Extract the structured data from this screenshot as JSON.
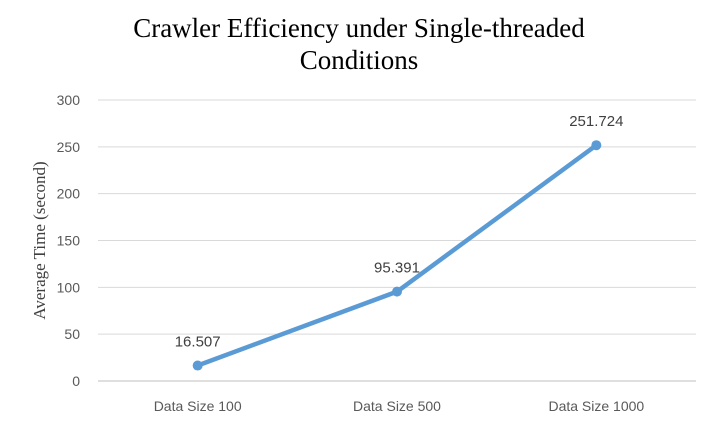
{
  "chart_data": {
    "type": "line",
    "title_lines": [
      "Crawler Efficiency under Single-threaded",
      "Conditions"
    ],
    "xlabel": "",
    "ylabel": "Average Time (second)",
    "categories": [
      "Data Size 100",
      "Data Size 500",
      "Data Size 1000"
    ],
    "series": [
      {
        "values": [
          16.507,
          95.391,
          251.724
        ],
        "labels": [
          "16.507",
          "95.391",
          "251.724"
        ]
      }
    ],
    "ylim": [
      0,
      300
    ],
    "yticks": [
      0,
      50,
      100,
      150,
      200,
      250,
      300
    ],
    "grid": true,
    "legend": "none",
    "colors": {
      "line": "#5b9bd5",
      "grid": "#d9d9d9",
      "axis": "#bfbfbf",
      "tick_text": "#595959",
      "label_text": "#404040"
    }
  }
}
